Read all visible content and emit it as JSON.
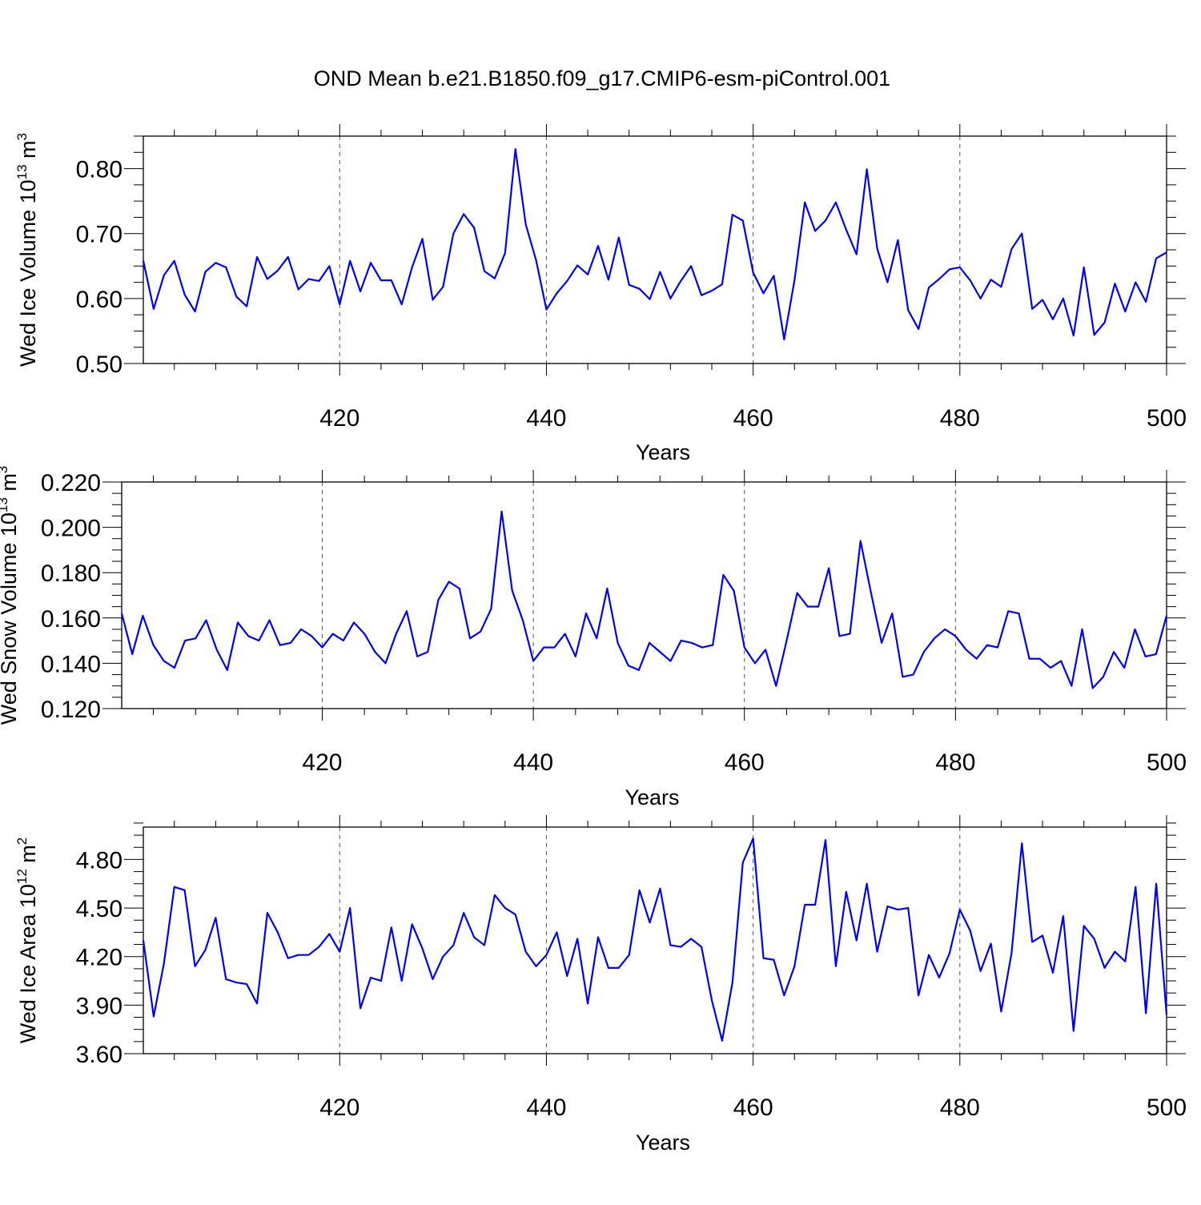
{
  "figure": {
    "title": "OND Mean b.e21.B1850.f09_g17.CMIP6-esm-piControl.001",
    "line_color": "#0000ff"
  },
  "chart_data": [
    {
      "type": "line",
      "id": "ice-volume",
      "ylabel": {
        "prefix": "Wed Ice Volume 10",
        "exp": "13",
        "unit": " m",
        "unit_exp": "3"
      },
      "xlabel": "Years",
      "xlim": [
        401,
        500
      ],
      "ylim": [
        0.5,
        0.85
      ],
      "yticks": [
        0.5,
        0.6,
        0.7,
        0.8
      ],
      "yticklabels": [
        "0.50",
        "0.60",
        "0.70",
        "0.80"
      ],
      "yminor_step": 0.025,
      "xticks": [
        420,
        440,
        460,
        480,
        500
      ],
      "xticklabels": [
        "420",
        "440",
        "460",
        "480",
        "500"
      ],
      "xminor_step": 4,
      "grid": "dashed vertical lines at x ticks",
      "x_start": 401,
      "series": [
        {
          "values": [
            0.658,
            0.584,
            0.636,
            0.658,
            0.606,
            0.58,
            0.641,
            0.655,
            0.648,
            0.603,
            0.588,
            0.664,
            0.63,
            0.643,
            0.664,
            0.614,
            0.63,
            0.627,
            0.65,
            0.591,
            0.658,
            0.611,
            0.655,
            0.628,
            0.628,
            0.591,
            0.648,
            0.692,
            0.598,
            0.618,
            0.7,
            0.73,
            0.709,
            0.642,
            0.631,
            0.67,
            0.83,
            0.714,
            0.659,
            0.583,
            0.608,
            0.627,
            0.651,
            0.637,
            0.681,
            0.629,
            0.694,
            0.621,
            0.615,
            0.599,
            0.641,
            0.6,
            0.627,
            0.65,
            0.605,
            0.612,
            0.622,
            0.729,
            0.72,
            0.64,
            0.608,
            0.635,
            0.537,
            0.628,
            0.748,
            0.704,
            0.72,
            0.748,
            0.706,
            0.668,
            0.799,
            0.677,
            0.625,
            0.69,
            0.582,
            0.553,
            0.617,
            0.63,
            0.645,
            0.648,
            0.628,
            0.6,
            0.629,
            0.618,
            0.676,
            0.7,
            0.584,
            0.598,
            0.568,
            0.6,
            0.543,
            0.648,
            0.544,
            0.563,
            0.623,
            0.58,
            0.625,
            0.595,
            0.662,
            0.671
          ]
        }
      ]
    },
    {
      "type": "line",
      "id": "snow-volume",
      "ylabel": {
        "prefix": "Wed Snow Volume 10",
        "exp": "13",
        "unit": " m",
        "unit_exp": "3"
      },
      "xlabel": "Years",
      "xlim": [
        401,
        500
      ],
      "ylim": [
        0.12,
        0.22
      ],
      "yticks": [
        0.12,
        0.14,
        0.16,
        0.18,
        0.2,
        0.22
      ],
      "yticklabels": [
        "0.120",
        "0.140",
        "0.160",
        "0.180",
        "0.200",
        "0.220"
      ],
      "yminor_step": 0.005,
      "xticks": [
        420,
        440,
        460,
        480,
        500
      ],
      "xticklabels": [
        "420",
        "440",
        "460",
        "480",
        "500"
      ],
      "xminor_step": 4,
      "grid": "dashed vertical lines at x ticks",
      "x_start": 401,
      "series": [
        {
          "values": [
            0.162,
            0.144,
            0.161,
            0.148,
            0.141,
            0.138,
            0.15,
            0.151,
            0.159,
            0.146,
            0.137,
            0.158,
            0.152,
            0.15,
            0.159,
            0.148,
            0.149,
            0.155,
            0.152,
            0.147,
            0.153,
            0.15,
            0.158,
            0.153,
            0.145,
            0.14,
            0.153,
            0.163,
            0.143,
            0.145,
            0.168,
            0.176,
            0.173,
            0.151,
            0.154,
            0.164,
            0.207,
            0.172,
            0.159,
            0.141,
            0.147,
            0.147,
            0.153,
            0.143,
            0.162,
            0.151,
            0.173,
            0.149,
            0.139,
            0.137,
            0.149,
            0.145,
            0.141,
            0.15,
            0.149,
            0.147,
            0.148,
            0.179,
            0.172,
            0.147,
            0.14,
            0.146,
            0.13,
            0.15,
            0.171,
            0.165,
            0.165,
            0.182,
            0.152,
            0.153,
            0.194,
            0.171,
            0.149,
            0.162,
            0.134,
            0.135,
            0.145,
            0.151,
            0.155,
            0.152,
            0.146,
            0.142,
            0.148,
            0.147,
            0.163,
            0.162,
            0.142,
            0.142,
            0.138,
            0.141,
            0.13,
            0.155,
            0.129,
            0.134,
            0.145,
            0.138,
            0.155,
            0.143,
            0.144,
            0.161
          ]
        }
      ]
    },
    {
      "type": "line",
      "id": "ice-area",
      "ylabel": {
        "prefix": "Wed Ice Area 10",
        "exp": "12",
        "unit": " m",
        "unit_exp": "2"
      },
      "xlabel": "Years",
      "xlim": [
        401,
        500
      ],
      "ylim": [
        3.6,
        5.0
      ],
      "yticks": [
        3.6,
        3.9,
        4.2,
        4.5,
        4.8
      ],
      "yticklabels": [
        "3.60",
        "3.90",
        "4.20",
        "4.50",
        "4.80"
      ],
      "yminor_step": 0.075,
      "xticks": [
        420,
        440,
        460,
        480,
        500
      ],
      "xticklabels": [
        "420",
        "440",
        "460",
        "480",
        "500"
      ],
      "xminor_step": 4,
      "grid": "dashed vertical lines at x ticks",
      "x_start": 401,
      "series": [
        {
          "values": [
            4.3,
            3.83,
            4.16,
            4.63,
            4.61,
            4.14,
            4.24,
            4.44,
            4.06,
            4.04,
            4.03,
            3.91,
            4.47,
            4.35,
            4.19,
            4.21,
            4.21,
            4.26,
            4.34,
            4.23,
            4.5,
            3.88,
            4.07,
            4.05,
            4.38,
            4.05,
            4.4,
            4.25,
            4.06,
            4.2,
            4.27,
            4.47,
            4.32,
            4.27,
            4.58,
            4.5,
            4.46,
            4.23,
            4.14,
            4.21,
            4.35,
            4.08,
            4.31,
            3.91,
            4.32,
            4.13,
            4.13,
            4.21,
            4.61,
            4.41,
            4.62,
            4.27,
            4.26,
            4.31,
            4.26,
            3.93,
            3.68,
            4.04,
            4.78,
            4.93,
            4.19,
            4.18,
            3.96,
            4.14,
            4.52,
            4.52,
            4.92,
            4.14,
            4.6,
            4.3,
            4.65,
            4.23,
            4.51,
            4.49,
            4.5,
            3.96,
            4.21,
            4.07,
            4.22,
            4.49,
            4.36,
            4.11,
            4.28,
            3.86,
            4.22,
            4.9,
            4.29,
            4.33,
            4.1,
            4.45,
            3.74,
            4.39,
            4.31,
            4.13,
            4.23,
            4.17,
            4.63,
            3.85,
            4.65,
            3.84
          ]
        }
      ]
    }
  ]
}
